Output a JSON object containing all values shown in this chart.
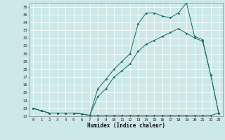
{
  "xlabel": "Humidex (Indice chaleur)",
  "bg_color": "#cce8e8",
  "grid_color": "#ffffff",
  "line_color": "#1a6b6b",
  "xlim": [
    -0.5,
    23.5
  ],
  "ylim": [
    22,
    36.5
  ],
  "xticks": [
    0,
    1,
    2,
    3,
    4,
    5,
    6,
    7,
    8,
    9,
    10,
    11,
    12,
    13,
    14,
    15,
    16,
    17,
    18,
    19,
    20,
    21,
    22,
    23
  ],
  "yticks": [
    22,
    23,
    24,
    25,
    26,
    27,
    28,
    29,
    30,
    31,
    32,
    33,
    34,
    35,
    36
  ],
  "line1_x": [
    0,
    1,
    2,
    3,
    4,
    5,
    6,
    7,
    8,
    9,
    10,
    11,
    12,
    13,
    14,
    15,
    16,
    17,
    18,
    19,
    20,
    21,
    22,
    23
  ],
  "line1_y": [
    23.0,
    22.7,
    22.4,
    22.4,
    22.4,
    22.4,
    22.3,
    22.1,
    22.1,
    22.1,
    22.1,
    22.1,
    22.1,
    22.1,
    22.1,
    22.1,
    22.1,
    22.1,
    22.1,
    22.1,
    22.1,
    22.1,
    22.1,
    22.4
  ],
  "line2_x": [
    0,
    1,
    2,
    3,
    4,
    5,
    6,
    7,
    8,
    9,
    10,
    11,
    12,
    13,
    14,
    15,
    16,
    17,
    18,
    19,
    20,
    21,
    22,
    23
  ],
  "line2_y": [
    23.0,
    22.7,
    22.4,
    22.4,
    22.4,
    22.4,
    22.3,
    22.1,
    25.5,
    26.7,
    28.0,
    29.0,
    30.0,
    33.8,
    35.2,
    35.2,
    34.8,
    34.6,
    35.2,
    36.5,
    32.2,
    31.8,
    27.3,
    22.4
  ],
  "line3_x": [
    0,
    1,
    2,
    3,
    4,
    5,
    6,
    7,
    8,
    9,
    10,
    11,
    12,
    13,
    14,
    15,
    16,
    17,
    18,
    19,
    20,
    21,
    22,
    23
  ],
  "line3_y": [
    23.0,
    22.7,
    22.4,
    22.4,
    22.4,
    22.4,
    22.3,
    22.1,
    24.5,
    25.5,
    27.0,
    27.8,
    28.7,
    30.3,
    31.2,
    31.7,
    32.2,
    32.7,
    33.2,
    32.6,
    32.0,
    31.6,
    27.3,
    22.4
  ]
}
